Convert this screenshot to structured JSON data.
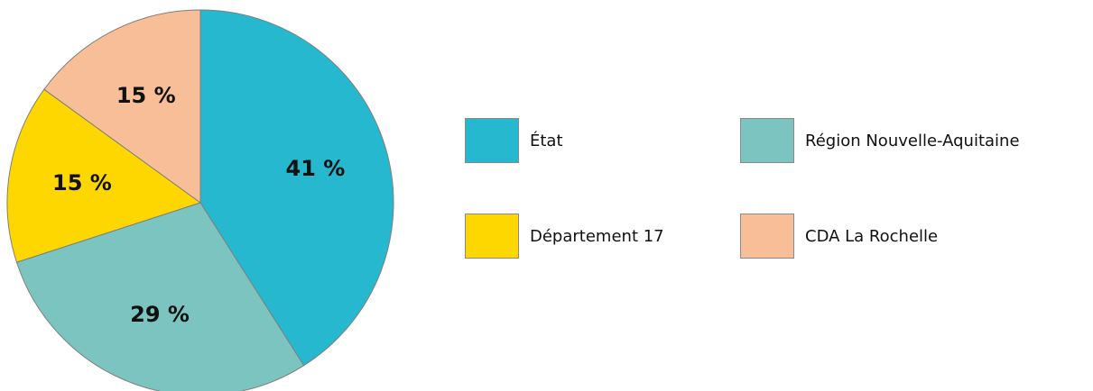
{
  "chart_data": {
    "type": "pie",
    "title": "",
    "slices": [
      {
        "label": "État",
        "value": 41,
        "display": "41 %",
        "color": "#25B8CF"
      },
      {
        "label": "Région Nouvelle-Aquitaine",
        "value": 29,
        "display": "29 %",
        "color": "#7BC4BF"
      },
      {
        "label": "Département 17",
        "value": 15,
        "display": "15 %",
        "color": "#FFD700"
      },
      {
        "label": "CDA La Rochelle",
        "value": 15,
        "display": "15 %",
        "color": "#F8BE97"
      }
    ],
    "start_angle": "12 o'clock",
    "direction": "clockwise",
    "legend_position": "right",
    "slice_border_color": "#7f7f7f"
  }
}
